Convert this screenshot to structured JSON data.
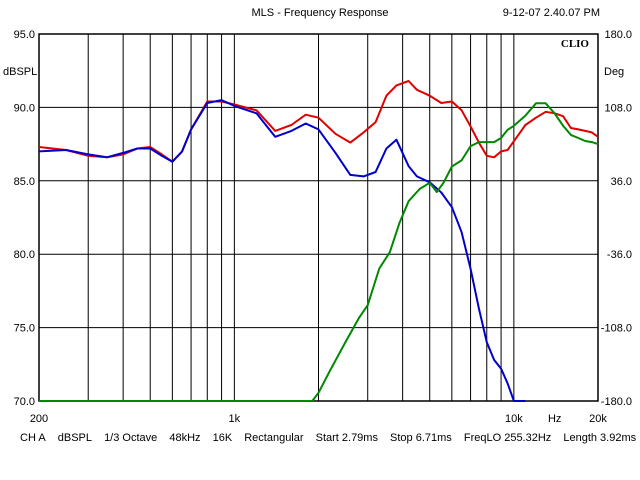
{
  "header": {
    "title": "MLS - Frequency Response",
    "timestamp": "9-12-07 2.40.07 PM"
  },
  "footer": {
    "channel": "CH A",
    "unit": "dBSPL",
    "smoothing": "1/3 Octave",
    "sample_rate": "48kHz",
    "size": "16K",
    "window": "Rectangular",
    "start": "Start 2.79ms",
    "stop": "Stop 6.71ms",
    "freq_lo": "FreqLO 255.32Hz",
    "length": "Length 3.92ms"
  },
  "chart_data": {
    "type": "line",
    "brand_mark": "CLIO",
    "xlabel": "Hz",
    "ylabel": "dBSPL",
    "ylabel_right": "Deg",
    "xscale": "log",
    "xlim": [
      200,
      20000
    ],
    "ylim": [
      70,
      95
    ],
    "ylim_right": [
      -180,
      180
    ],
    "grid": true,
    "x_tick_labels": [
      "200",
      "1k",
      "10k",
      "20k"
    ],
    "y_tick_labels": [
      "95.0",
      "90.0",
      "85.0",
      "80.0",
      "75.0",
      "70.0"
    ],
    "y_tick_labels_right": [
      "180.0",
      "108.0",
      "36.0",
      "-36.0",
      "-108.0",
      "-180.0"
    ],
    "colors": {
      "frame": "#000000",
      "grid": "#000000",
      "red": "#e00000",
      "blue": "#0000cc",
      "green": "#008800"
    },
    "series": [
      {
        "color": "red",
        "axis": "left",
        "x": [
          200,
          250,
          300,
          350,
          400,
          450,
          500,
          550,
          600,
          650,
          700,
          800,
          900,
          1000,
          1200,
          1400,
          1600,
          1800,
          2000,
          2300,
          2600,
          2900,
          3200,
          3500,
          3800,
          4200,
          4500,
          5000,
          5500,
          6000,
          6500,
          7000,
          7500,
          8000,
          8500,
          9000,
          9500,
          10000,
          11000,
          12000,
          13000,
          14000,
          15000,
          16000,
          17000,
          18000,
          19000,
          20000
        ],
        "y": [
          87.3,
          87.1,
          86.7,
          86.6,
          86.8,
          87.2,
          87.3,
          86.8,
          86.3,
          87.0,
          88.5,
          90.4,
          90.4,
          90.2,
          89.8,
          88.4,
          88.8,
          89.5,
          89.3,
          88.2,
          87.6,
          88.3,
          89.0,
          90.8,
          91.5,
          91.8,
          91.2,
          90.8,
          90.3,
          90.4,
          89.8,
          88.7,
          87.6,
          86.7,
          86.6,
          87.0,
          87.1,
          87.7,
          88.8,
          89.3,
          89.7,
          89.6,
          89.4,
          88.6,
          88.5,
          88.4,
          88.3,
          88.0
        ]
      },
      {
        "color": "blue",
        "axis": "left",
        "x": [
          200,
          250,
          300,
          350,
          400,
          450,
          500,
          550,
          600,
          650,
          700,
          800,
          900,
          1000,
          1200,
          1400,
          1600,
          1800,
          2000,
          2300,
          2600,
          2900,
          3200,
          3500,
          3800,
          4200,
          4500,
          5000,
          5500,
          6000,
          6500,
          7000,
          7500,
          8000,
          8500,
          9000,
          9500,
          10000,
          10500,
          11000
        ],
        "y": [
          87.0,
          87.1,
          86.8,
          86.6,
          86.9,
          87.2,
          87.2,
          86.7,
          86.3,
          87.0,
          88.5,
          90.3,
          90.5,
          90.1,
          89.6,
          88.0,
          88.4,
          88.9,
          88.5,
          86.9,
          85.4,
          85.3,
          85.6,
          87.2,
          87.8,
          86.0,
          85.3,
          84.9,
          84.2,
          83.2,
          81.5,
          79.0,
          76.3,
          74.0,
          72.8,
          72.2,
          71.2,
          70.0,
          70.0,
          70.0
        ]
      },
      {
        "color": "green",
        "axis": "right",
        "x": [
          200,
          500,
          1000,
          1500,
          1900,
          2000,
          2200,
          2500,
          2800,
          3000,
          3300,
          3600,
          3900,
          4200,
          4600,
          5000,
          5300,
          5600,
          6000,
          6500,
          7000,
          7500,
          8000,
          8500,
          9000,
          9500,
          10000,
          11000,
          12000,
          13000,
          14000,
          15000,
          16000,
          17000,
          18000,
          19000,
          20000
        ],
        "y": [
          -180,
          -180,
          -180,
          -180,
          -180,
          -172,
          -150,
          -122,
          -98,
          -86,
          -50,
          -34,
          -5,
          16,
          28,
          34,
          25,
          34,
          50,
          56,
          70,
          74,
          74,
          74,
          78,
          86,
          90,
          100,
          112,
          112,
          102,
          90,
          81,
          78,
          75,
          74,
          72
        ]
      }
    ]
  }
}
